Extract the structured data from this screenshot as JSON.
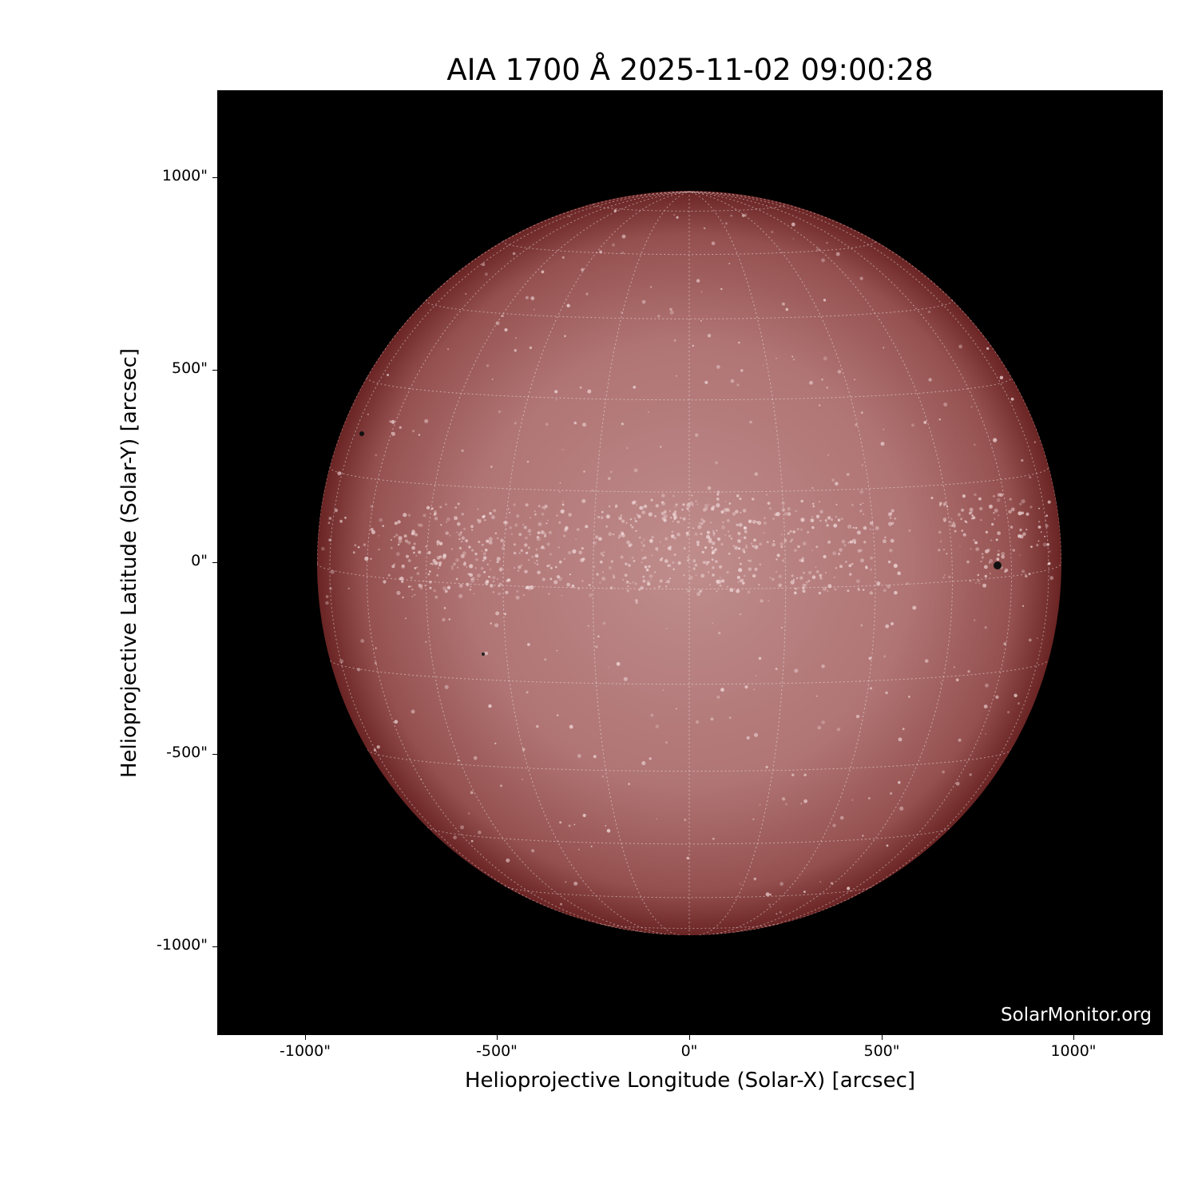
{
  "title": "AIA 1700 Å 2025-11-02 09:00:28",
  "watermark": "SolarMonitor.org",
  "x_axis": {
    "label": "Helioprojective Longitude (Solar-X) [arcsec]",
    "ticks": [
      "-1000\"",
      "-500\"",
      "0\"",
      "500\"",
      "1000\""
    ]
  },
  "y_axis": {
    "label": "Helioprojective Latitude (Solar-Y) [arcsec]",
    "ticks": [
      "1000\"",
      "500\"",
      "0\"",
      "-500\"",
      "-1000\""
    ]
  },
  "colors": {
    "disk": "#b87878",
    "limb": "#6a2020",
    "background": "#000000",
    "grid": "#ffffff"
  },
  "image": {
    "instrument": "AIA 1700 Å",
    "grid_spacing_deg": 15
  }
}
